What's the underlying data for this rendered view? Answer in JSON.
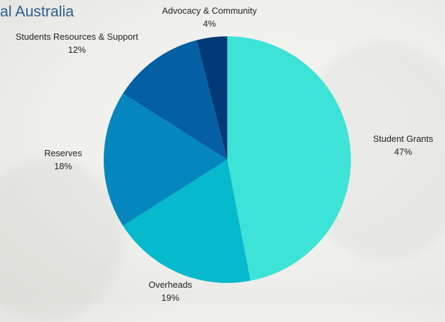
{
  "page": {
    "title": "al Australia"
  },
  "chart_data": {
    "type": "pie",
    "title": "",
    "start_angle_deg": 0,
    "direction": "clockwise",
    "slices": [
      {
        "label": "Student Grants",
        "pct_label": "47%",
        "value": 47,
        "color": "#3de3d6"
      },
      {
        "label": "Overheads",
        "pct_label": "19%",
        "value": 19,
        "color": "#06b9cc"
      },
      {
        "label": "Reserves",
        "pct_label": "18%",
        "value": 18,
        "color": "#0487bf"
      },
      {
        "label": "Students Resources & Support",
        "pct_label": "12%",
        "value": 12,
        "color": "#0460a3"
      },
      {
        "label": "Advocacy & Community",
        "pct_label": "4%",
        "value": 4,
        "color": "#023a78"
      }
    ],
    "legend": "none",
    "data_labels": "outside"
  }
}
